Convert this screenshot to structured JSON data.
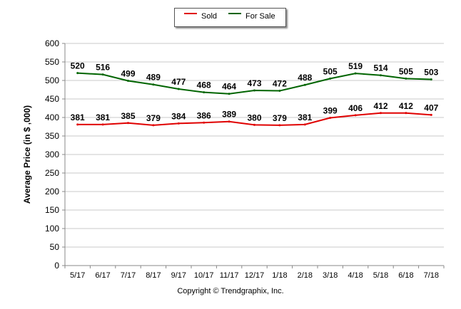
{
  "chart_data": {
    "type": "line",
    "categories": [
      "5/17",
      "6/17",
      "7/17",
      "8/17",
      "9/17",
      "10/17",
      "11/17",
      "12/17",
      "1/18",
      "2/18",
      "3/18",
      "4/18",
      "5/18",
      "6/18",
      "7/18"
    ],
    "series": [
      {
        "name": "Sold",
        "color": "#e00000",
        "values": [
          381,
          381,
          385,
          379,
          384,
          386,
          389,
          380,
          379,
          381,
          399,
          406,
          412,
          412,
          407
        ]
      },
      {
        "name": "For Sale",
        "color": "#006400",
        "values": [
          520,
          516,
          499,
          489,
          477,
          468,
          464,
          473,
          472,
          488,
          505,
          519,
          514,
          505,
          503
        ]
      }
    ],
    "ylabel": "Average Price (in $ ,000)",
    "xlabel": "",
    "ylim": [
      0,
      600
    ],
    "yticks": [
      0,
      50,
      100,
      150,
      200,
      250,
      300,
      350,
      400,
      450,
      500,
      550,
      600
    ],
    "grid": true,
    "legend_position": "top-center"
  },
  "footer": "Copyright © Trendgraphix, Inc."
}
